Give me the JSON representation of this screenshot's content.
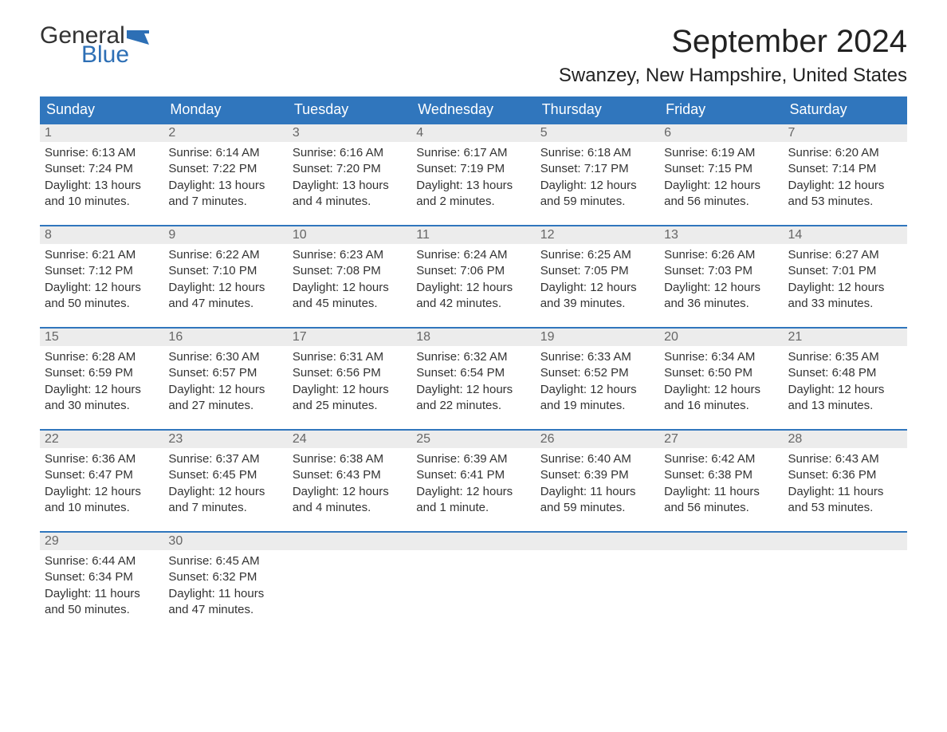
{
  "logo": {
    "word1": "General",
    "word2": "Blue",
    "flag_color": "#2d6fb5"
  },
  "title": "September 2024",
  "location": "Swanzey, New Hampshire, United States",
  "colors": {
    "header_bg": "#3076bd",
    "header_text": "#ffffff",
    "daynum_bg": "#ececec",
    "daynum_border": "#3076bd",
    "body_text": "#333333"
  },
  "day_names": [
    "Sunday",
    "Monday",
    "Tuesday",
    "Wednesday",
    "Thursday",
    "Friday",
    "Saturday"
  ],
  "weeks": [
    [
      {
        "n": "1",
        "sr": "Sunrise: 6:13 AM",
        "ss": "Sunset: 7:24 PM",
        "d1": "Daylight: 13 hours",
        "d2": "and 10 minutes."
      },
      {
        "n": "2",
        "sr": "Sunrise: 6:14 AM",
        "ss": "Sunset: 7:22 PM",
        "d1": "Daylight: 13 hours",
        "d2": "and 7 minutes."
      },
      {
        "n": "3",
        "sr": "Sunrise: 6:16 AM",
        "ss": "Sunset: 7:20 PM",
        "d1": "Daylight: 13 hours",
        "d2": "and 4 minutes."
      },
      {
        "n": "4",
        "sr": "Sunrise: 6:17 AM",
        "ss": "Sunset: 7:19 PM",
        "d1": "Daylight: 13 hours",
        "d2": "and 2 minutes."
      },
      {
        "n": "5",
        "sr": "Sunrise: 6:18 AM",
        "ss": "Sunset: 7:17 PM",
        "d1": "Daylight: 12 hours",
        "d2": "and 59 minutes."
      },
      {
        "n": "6",
        "sr": "Sunrise: 6:19 AM",
        "ss": "Sunset: 7:15 PM",
        "d1": "Daylight: 12 hours",
        "d2": "and 56 minutes."
      },
      {
        "n": "7",
        "sr": "Sunrise: 6:20 AM",
        "ss": "Sunset: 7:14 PM",
        "d1": "Daylight: 12 hours",
        "d2": "and 53 minutes."
      }
    ],
    [
      {
        "n": "8",
        "sr": "Sunrise: 6:21 AM",
        "ss": "Sunset: 7:12 PM",
        "d1": "Daylight: 12 hours",
        "d2": "and 50 minutes."
      },
      {
        "n": "9",
        "sr": "Sunrise: 6:22 AM",
        "ss": "Sunset: 7:10 PM",
        "d1": "Daylight: 12 hours",
        "d2": "and 47 minutes."
      },
      {
        "n": "10",
        "sr": "Sunrise: 6:23 AM",
        "ss": "Sunset: 7:08 PM",
        "d1": "Daylight: 12 hours",
        "d2": "and 45 minutes."
      },
      {
        "n": "11",
        "sr": "Sunrise: 6:24 AM",
        "ss": "Sunset: 7:06 PM",
        "d1": "Daylight: 12 hours",
        "d2": "and 42 minutes."
      },
      {
        "n": "12",
        "sr": "Sunrise: 6:25 AM",
        "ss": "Sunset: 7:05 PM",
        "d1": "Daylight: 12 hours",
        "d2": "and 39 minutes."
      },
      {
        "n": "13",
        "sr": "Sunrise: 6:26 AM",
        "ss": "Sunset: 7:03 PM",
        "d1": "Daylight: 12 hours",
        "d2": "and 36 minutes."
      },
      {
        "n": "14",
        "sr": "Sunrise: 6:27 AM",
        "ss": "Sunset: 7:01 PM",
        "d1": "Daylight: 12 hours",
        "d2": "and 33 minutes."
      }
    ],
    [
      {
        "n": "15",
        "sr": "Sunrise: 6:28 AM",
        "ss": "Sunset: 6:59 PM",
        "d1": "Daylight: 12 hours",
        "d2": "and 30 minutes."
      },
      {
        "n": "16",
        "sr": "Sunrise: 6:30 AM",
        "ss": "Sunset: 6:57 PM",
        "d1": "Daylight: 12 hours",
        "d2": "and 27 minutes."
      },
      {
        "n": "17",
        "sr": "Sunrise: 6:31 AM",
        "ss": "Sunset: 6:56 PM",
        "d1": "Daylight: 12 hours",
        "d2": "and 25 minutes."
      },
      {
        "n": "18",
        "sr": "Sunrise: 6:32 AM",
        "ss": "Sunset: 6:54 PM",
        "d1": "Daylight: 12 hours",
        "d2": "and 22 minutes."
      },
      {
        "n": "19",
        "sr": "Sunrise: 6:33 AM",
        "ss": "Sunset: 6:52 PM",
        "d1": "Daylight: 12 hours",
        "d2": "and 19 minutes."
      },
      {
        "n": "20",
        "sr": "Sunrise: 6:34 AM",
        "ss": "Sunset: 6:50 PM",
        "d1": "Daylight: 12 hours",
        "d2": "and 16 minutes."
      },
      {
        "n": "21",
        "sr": "Sunrise: 6:35 AM",
        "ss": "Sunset: 6:48 PM",
        "d1": "Daylight: 12 hours",
        "d2": "and 13 minutes."
      }
    ],
    [
      {
        "n": "22",
        "sr": "Sunrise: 6:36 AM",
        "ss": "Sunset: 6:47 PM",
        "d1": "Daylight: 12 hours",
        "d2": "and 10 minutes."
      },
      {
        "n": "23",
        "sr": "Sunrise: 6:37 AM",
        "ss": "Sunset: 6:45 PM",
        "d1": "Daylight: 12 hours",
        "d2": "and 7 minutes."
      },
      {
        "n": "24",
        "sr": "Sunrise: 6:38 AM",
        "ss": "Sunset: 6:43 PM",
        "d1": "Daylight: 12 hours",
        "d2": "and 4 minutes."
      },
      {
        "n": "25",
        "sr": "Sunrise: 6:39 AM",
        "ss": "Sunset: 6:41 PM",
        "d1": "Daylight: 12 hours",
        "d2": "and 1 minute."
      },
      {
        "n": "26",
        "sr": "Sunrise: 6:40 AM",
        "ss": "Sunset: 6:39 PM",
        "d1": "Daylight: 11 hours",
        "d2": "and 59 minutes."
      },
      {
        "n": "27",
        "sr": "Sunrise: 6:42 AM",
        "ss": "Sunset: 6:38 PM",
        "d1": "Daylight: 11 hours",
        "d2": "and 56 minutes."
      },
      {
        "n": "28",
        "sr": "Sunrise: 6:43 AM",
        "ss": "Sunset: 6:36 PM",
        "d1": "Daylight: 11 hours",
        "d2": "and 53 minutes."
      }
    ],
    [
      {
        "n": "29",
        "sr": "Sunrise: 6:44 AM",
        "ss": "Sunset: 6:34 PM",
        "d1": "Daylight: 11 hours",
        "d2": "and 50 minutes."
      },
      {
        "n": "30",
        "sr": "Sunrise: 6:45 AM",
        "ss": "Sunset: 6:32 PM",
        "d1": "Daylight: 11 hours",
        "d2": "and 47 minutes."
      },
      {
        "empty": true
      },
      {
        "empty": true
      },
      {
        "empty": true
      },
      {
        "empty": true
      },
      {
        "empty": true
      }
    ]
  ]
}
